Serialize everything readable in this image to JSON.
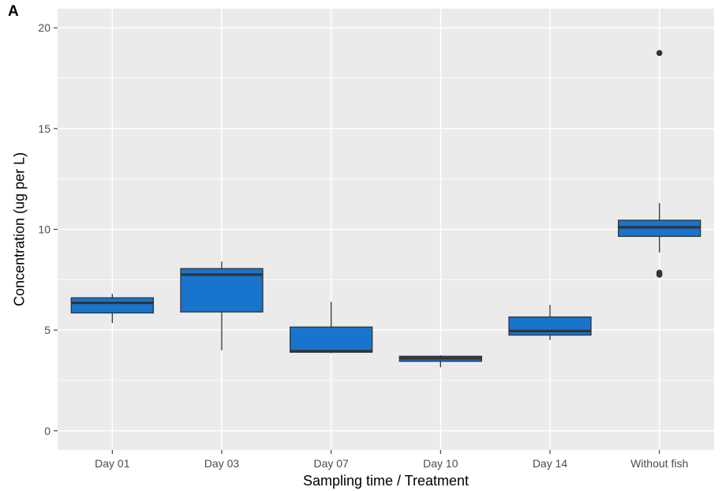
{
  "panel_label": "A",
  "chart_data": {
    "type": "boxplot",
    "title": "",
    "xlabel": "Sampling time / Treatment",
    "ylabel": "Concentration (ug per L)",
    "ylim": [
      -0.95,
      20.95
    ],
    "yticks": [
      0,
      5,
      10,
      15,
      20
    ],
    "grid": true,
    "legend": "none",
    "colors": {
      "box_fill": "#1874CD",
      "box_edge": "#333333",
      "panel_bg": "#EBEBEB",
      "grid": "#FFFFFF"
    },
    "categories": [
      "Day 01",
      "Day 03",
      "Day 07",
      "Day 10",
      "Day 14",
      "Without fish"
    ],
    "boxes": [
      {
        "category": "Day 01",
        "whisker_low": 5.35,
        "q1": 5.85,
        "median": 6.35,
        "q3": 6.6,
        "whisker_high": 6.8,
        "outliers": []
      },
      {
        "category": "Day 03",
        "whisker_low": 4.0,
        "q1": 5.9,
        "median": 7.75,
        "q3": 8.05,
        "whisker_high": 8.4,
        "outliers": []
      },
      {
        "category": "Day 07",
        "whisker_low": 3.85,
        "q1": 3.9,
        "median": 3.95,
        "q3": 5.15,
        "whisker_high": 6.4,
        "outliers": []
      },
      {
        "category": "Day 10",
        "whisker_low": 3.15,
        "q1": 3.45,
        "median": 3.6,
        "q3": 3.7,
        "whisker_high": 3.75,
        "outliers": []
      },
      {
        "category": "Day 14",
        "whisker_low": 4.5,
        "q1": 4.75,
        "median": 4.95,
        "q3": 5.65,
        "whisker_high": 6.25,
        "outliers": []
      },
      {
        "category": "Without fish",
        "whisker_low": 8.85,
        "q1": 9.65,
        "median": 10.1,
        "q3": 10.45,
        "whisker_high": 11.3,
        "outliers": [
          7.75,
          7.85,
          18.75
        ]
      }
    ]
  }
}
